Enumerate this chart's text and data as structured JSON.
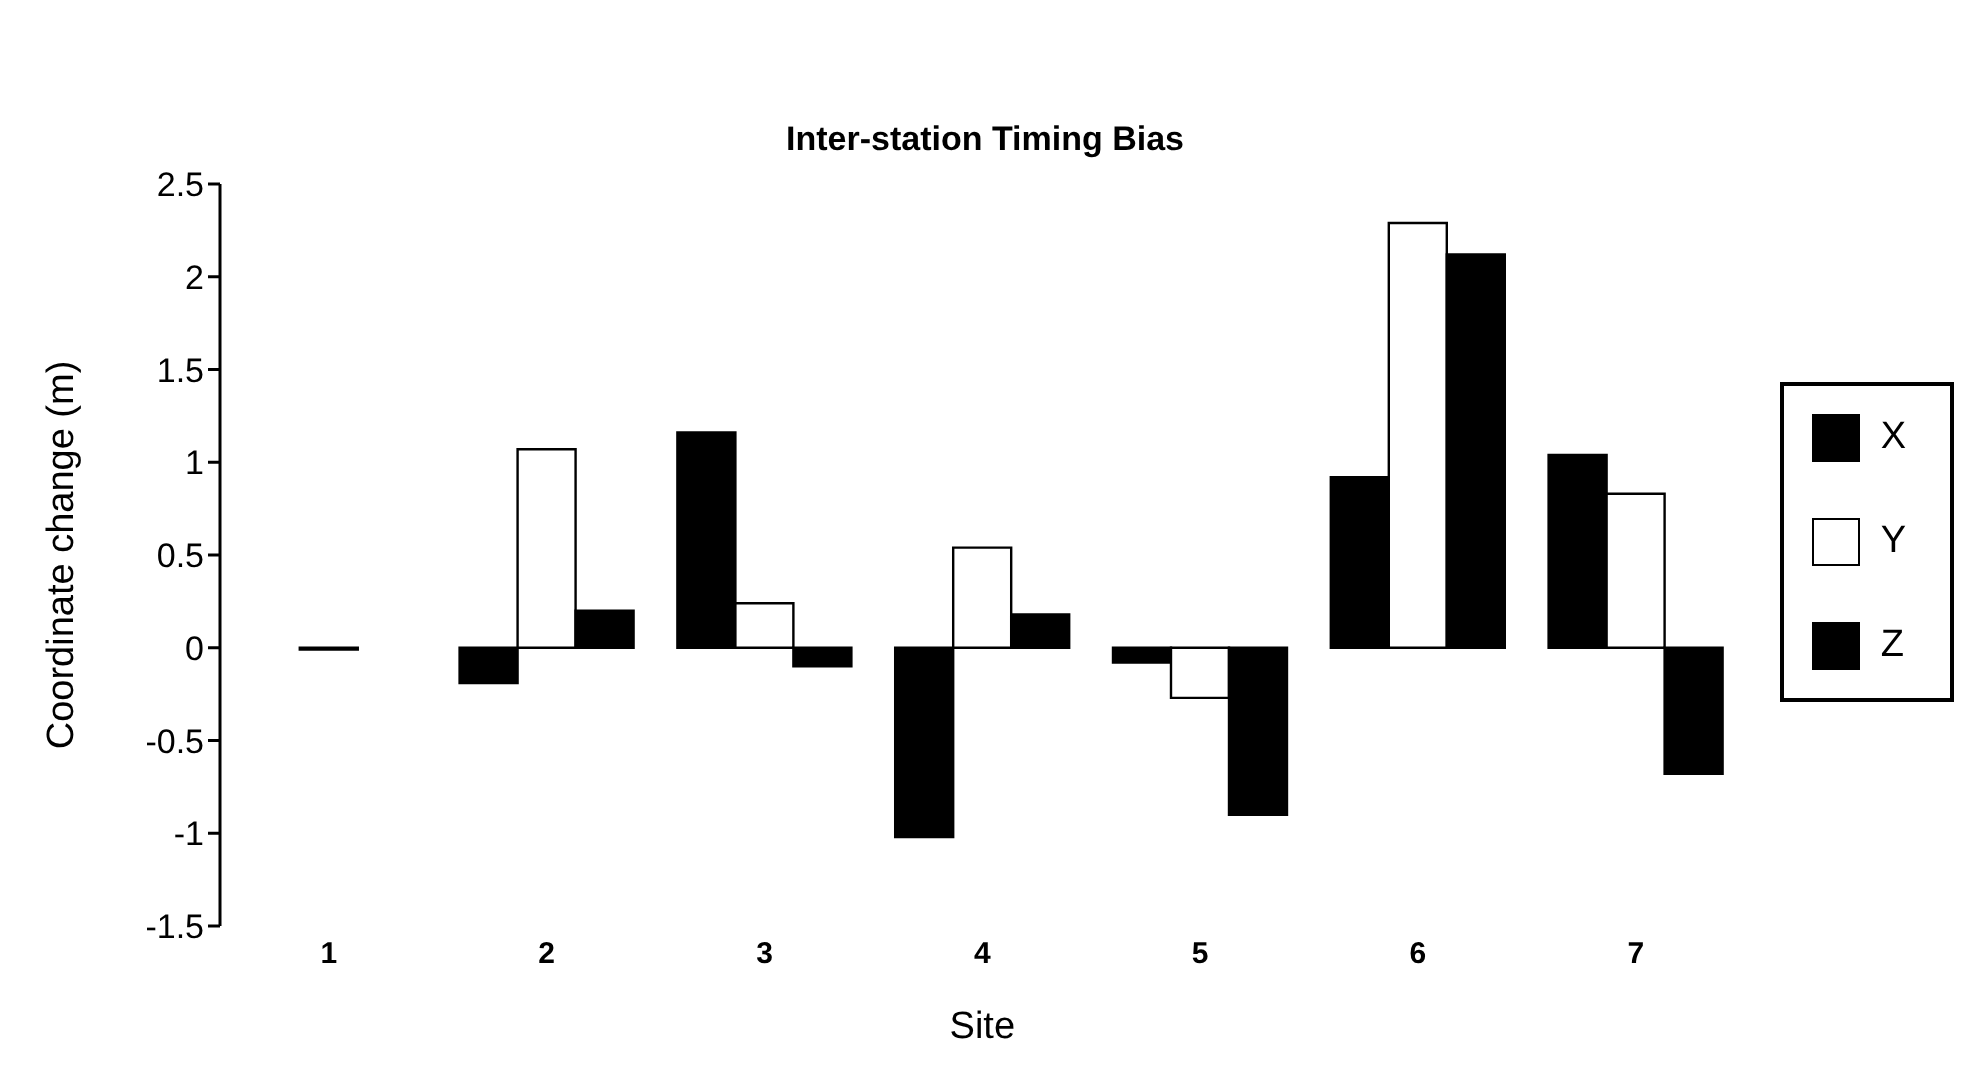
{
  "chart_data": {
    "type": "bar",
    "title": "Inter-station Timing Bias",
    "xlabel": "Site",
    "ylabel": "Coordinate change (m)",
    "categories": [
      "1",
      "2",
      "3",
      "4",
      "5",
      "6",
      "7"
    ],
    "series": [
      {
        "name": "X",
        "color": "#000000",
        "values": [
          0,
          -0.19,
          1.16,
          -1.02,
          -0.08,
          0.92,
          1.04
        ]
      },
      {
        "name": "Y",
        "color": "#ffffff",
        "values": [
          -0.01,
          1.07,
          0.24,
          0.54,
          -0.27,
          2.29,
          0.83
        ]
      },
      {
        "name": "Z",
        "color": "#000000",
        "values": [
          0,
          0.2,
          -0.1,
          0.18,
          -0.9,
          2.12,
          -0.68
        ]
      }
    ],
    "ylim": [
      -1.5,
      2.5
    ],
    "yticks": [
      -1.5,
      -1,
      -0.5,
      0,
      0.5,
      1,
      1.5,
      2,
      2.5
    ],
    "grid": false,
    "legend": "right"
  }
}
